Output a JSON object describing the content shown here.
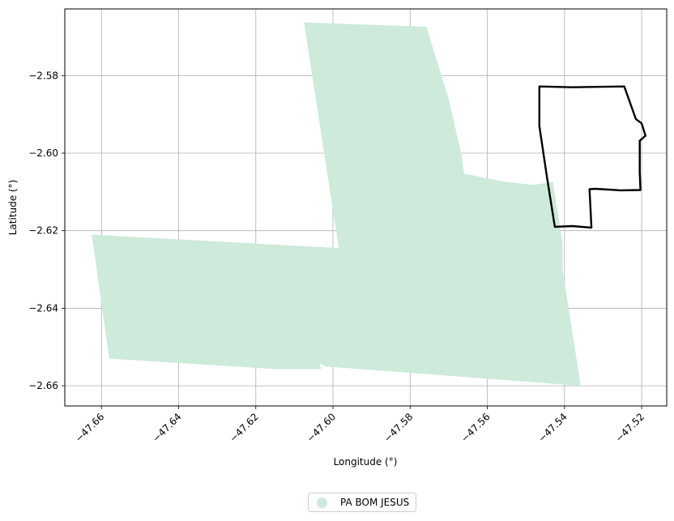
{
  "chart_data": {
    "type": "map",
    "xlabel": "Longitude (°)",
    "ylabel": "Latitude (°)",
    "xlim": [
      -47.6695,
      -47.5135
    ],
    "ylim": [
      -2.6652,
      -2.5628
    ],
    "xticks": [
      -47.66,
      -47.64,
      -47.62,
      -47.6,
      -47.58,
      -47.56,
      -47.54,
      -47.52
    ],
    "yticks": [
      -2.58,
      -2.6,
      -2.62,
      -2.64,
      -2.66
    ],
    "grid": true,
    "legend_position": "bottom-center",
    "layers": [
      {
        "name": "PA BOM JESUS",
        "kind": "filled-polygon",
        "color": "#cdeadb",
        "coordinates": [
          [
            -47.6075,
            -2.5663
          ],
          [
            -47.5758,
            -2.5674
          ],
          [
            -47.57,
            -2.586
          ],
          [
            -47.5668,
            -2.6
          ],
          [
            -47.566,
            -2.6053
          ],
          [
            -47.556,
            -2.6073
          ],
          [
            -47.548,
            -2.6082
          ],
          [
            -47.543,
            -2.6074
          ],
          [
            -47.5405,
            -2.623
          ],
          [
            -47.5405,
            -2.63
          ],
          [
            -47.5358,
            -2.66
          ],
          [
            -47.602,
            -2.655
          ],
          [
            -47.6035,
            -2.6542
          ],
          [
            -47.603,
            -2.6557
          ],
          [
            -47.615,
            -2.6557
          ],
          [
            -47.658,
            -2.653
          ],
          [
            -47.6625,
            -2.621
          ],
          [
            -47.5985,
            -2.6245
          ]
        ]
      },
      {
        "name": "boundary",
        "kind": "outline",
        "color": "#000000",
        "coordinates": [
          [
            -47.5465,
            -2.5828
          ],
          [
            -47.538,
            -2.583
          ],
          [
            -47.5315,
            -2.5829
          ],
          [
            -47.5245,
            -2.5828
          ],
          [
            -47.5215,
            -2.5912
          ],
          [
            -47.52,
            -2.5923
          ],
          [
            -47.519,
            -2.5955
          ],
          [
            -47.5205,
            -2.5968
          ],
          [
            -47.5205,
            -2.605
          ],
          [
            -47.5203,
            -2.6095
          ],
          [
            -47.5255,
            -2.6096
          ],
          [
            -47.532,
            -2.6092
          ],
          [
            -47.5335,
            -2.6093
          ],
          [
            -47.533,
            -2.6192
          ],
          [
            -47.538,
            -2.6188
          ],
          [
            -47.5425,
            -2.619
          ],
          [
            -47.5445,
            -2.6065
          ],
          [
            -47.5465,
            -2.593
          ]
        ]
      }
    ]
  }
}
